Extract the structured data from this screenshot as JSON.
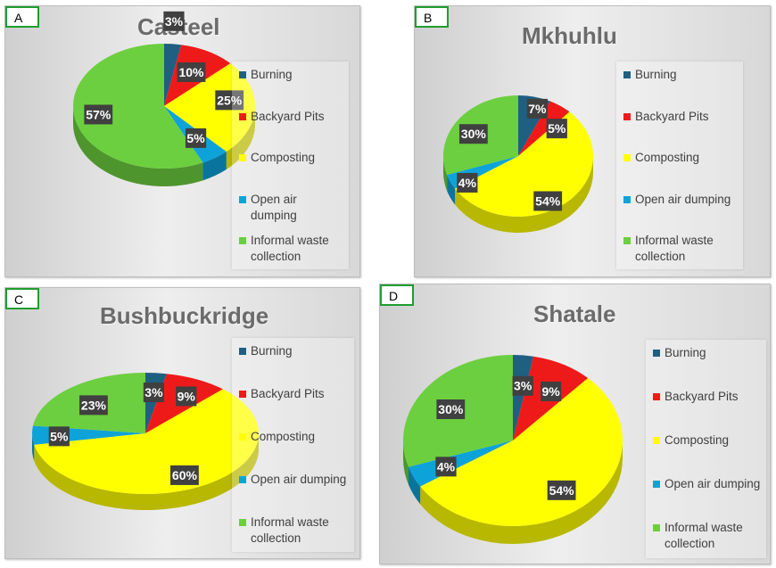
{
  "colors": {
    "burning": "#1f5f82",
    "backyard_pits": "#ee1a1a",
    "composting": "#ffff00",
    "open_air_dumping": "#0ea3d8",
    "informal_waste": "#6ccf3f"
  },
  "chart_data": [
    {
      "panel": "A",
      "type": "pie",
      "title": "Casteel",
      "categories": [
        "Burning",
        "Backyard Pits",
        "Composting",
        "Open air dumping",
        "Informal waste collection"
      ],
      "values": [
        3,
        10,
        25,
        5,
        57
      ],
      "data_labels": [
        "3%",
        "10%",
        "25%",
        "5%",
        "57%"
      ],
      "legend": [
        "Burning",
        "Backyard Pits",
        "Composting",
        "Open air dumping",
        "Informal waste collection"
      ],
      "legend_position": "right"
    },
    {
      "panel": "B",
      "type": "pie",
      "title": "Mkhuhlu",
      "categories": [
        "Burning",
        "Backyard Pits",
        "Composting",
        "Open air dumping",
        "Informal waste collection"
      ],
      "values": [
        7,
        5,
        54,
        4,
        30
      ],
      "data_labels": [
        "7%",
        "5%",
        "54%",
        "4%",
        "30%"
      ],
      "legend": [
        "Burning",
        "Backyard Pits",
        "Composting",
        "Open air dumping",
        "Informal waste collection"
      ],
      "legend_position": "right"
    },
    {
      "panel": "C",
      "type": "pie",
      "title": "Bushbuckridge",
      "categories": [
        "Burning",
        "Backyard Pits",
        "Composting",
        "Open air dumping",
        "Informal waste collection"
      ],
      "values": [
        3,
        9,
        60,
        5,
        23
      ],
      "data_labels": [
        "3%",
        "9%",
        "60%",
        "5%",
        "23%"
      ],
      "legend": [
        "Burning",
        "Backyard Pits",
        "Composting",
        "Open air dumping",
        "Informal waste collection"
      ],
      "legend_position": "right"
    },
    {
      "panel": "D",
      "type": "pie",
      "title": "Shatale",
      "categories": [
        "Burning",
        "Backyard Pits",
        "Composting",
        "Open air dumping",
        "Informal waste collection"
      ],
      "values": [
        3,
        9,
        54,
        4,
        30
      ],
      "data_labels": [
        "3%",
        "9%",
        "54%",
        "4%",
        "30%"
      ],
      "legend": [
        "Burning",
        "Backyard Pits",
        "Composting",
        "Open air dumping",
        "Informal waste collection"
      ],
      "legend_position": "right"
    }
  ]
}
